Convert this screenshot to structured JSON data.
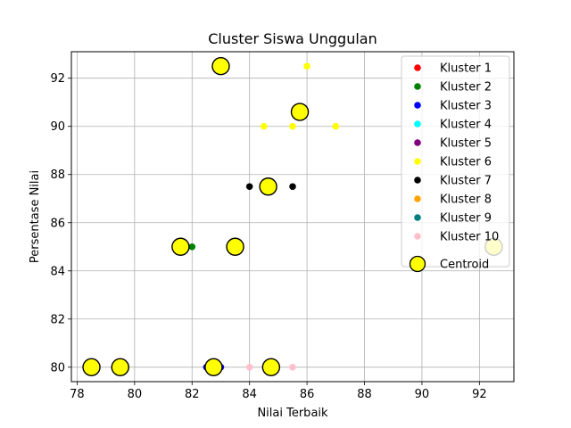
{
  "chart_data": {
    "type": "scatter",
    "title": "Cluster Siswa Unggulan",
    "xlabel": "Nilai Terbaik",
    "ylabel": "Persentase Nilai",
    "xlim": [
      77.8,
      93.2
    ],
    "ylim": [
      79.4,
      93.1
    ],
    "xticks": [
      78,
      80,
      82,
      84,
      86,
      88,
      90,
      92
    ],
    "yticks": [
      80,
      82,
      84,
      86,
      88,
      90,
      92
    ],
    "grid": true,
    "legend_position": "top-right",
    "series": [
      {
        "name": "Kluster 1",
        "color": "#ff0000",
        "points": []
      },
      {
        "name": "Kluster 2",
        "color": "#008000",
        "points": [
          [
            82,
            85
          ]
        ]
      },
      {
        "name": "Kluster 3",
        "color": "#0000ff",
        "points": [
          [
            82.5,
            80
          ],
          [
            83,
            80
          ]
        ]
      },
      {
        "name": "Kluster 4",
        "color": "#00ffff",
        "points": []
      },
      {
        "name": "Kluster 5",
        "color": "#800080",
        "points": []
      },
      {
        "name": "Kluster 6",
        "color": "#ffff00",
        "points": [
          [
            84.5,
            90
          ],
          [
            85.5,
            90
          ],
          [
            86,
            92.5
          ],
          [
            87,
            90
          ]
        ]
      },
      {
        "name": "Kluster 7",
        "color": "#000000",
        "points": [
          [
            84,
            87.5
          ],
          [
            85.5,
            87.5
          ]
        ]
      },
      {
        "name": "Kluster 8",
        "color": "#ffa500",
        "points": []
      },
      {
        "name": "Kluster 9",
        "color": "#008080",
        "points": []
      },
      {
        "name": "Kluster 10",
        "color": "#ffc0cb",
        "points": [
          [
            84,
            80
          ],
          [
            85.5,
            80
          ]
        ]
      }
    ],
    "centroids": {
      "name": "Centroid",
      "color": "#ffff00",
      "edgecolor": "#000000",
      "points": [
        [
          78.5,
          80
        ],
        [
          79.5,
          80
        ],
        [
          82.75,
          80
        ],
        [
          84.75,
          80
        ],
        [
          81.6,
          85
        ],
        [
          83.5,
          85
        ],
        [
          84.65,
          87.5
        ],
        [
          85.75,
          90.6
        ],
        [
          83,
          92.5
        ],
        [
          92.5,
          85
        ]
      ]
    }
  }
}
